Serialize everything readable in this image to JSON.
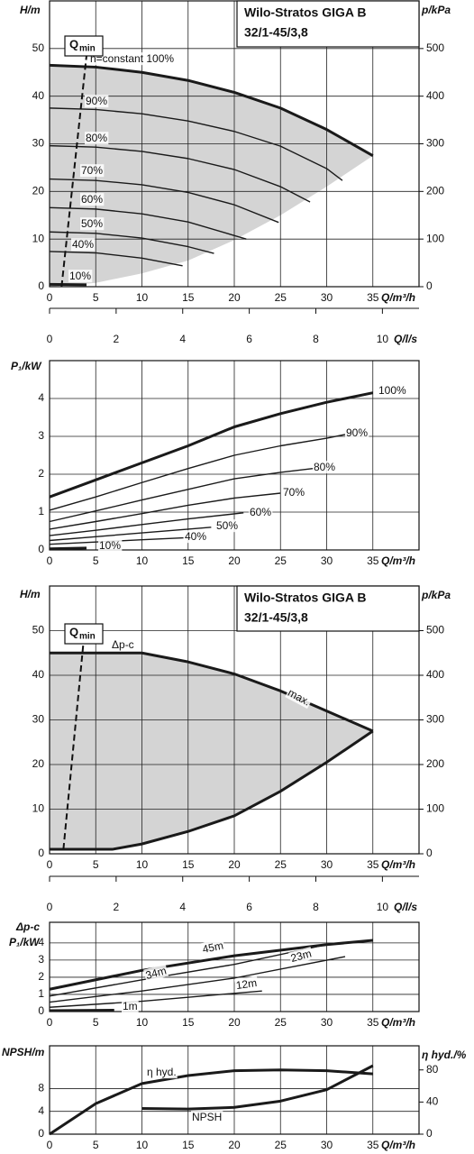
{
  "chart_data": [
    {
      "type": "line",
      "title": [
        "Wilo-Stratos GIGA B",
        "32/1-45/3,8"
      ],
      "ylabel": [
        "H/m"
      ],
      "y2label": "p/kPa",
      "xlabel": "Q/m³/h",
      "xlim": [
        0,
        40
      ],
      "xticks": [
        0,
        5,
        10,
        15,
        20,
        25,
        30,
        35
      ],
      "ylim": [
        0,
        60
      ],
      "yticks": [
        0,
        10,
        20,
        30,
        40,
        50
      ],
      "y2lim": [
        0,
        600
      ],
      "y2ticks": [
        0,
        100,
        200,
        300,
        400,
        500
      ],
      "grid": true,
      "qmin": {
        "label": "Q",
        "subscript": "min",
        "x": [
          1.3,
          4
        ],
        "values": [
          0,
          48.5
        ]
      },
      "region": {
        "color": "#d4d4d4",
        "line": false,
        "x": [
          0,
          5,
          10,
          15,
          20,
          25,
          30,
          35
        ],
        "values": [
          0,
          0.8,
          2.8,
          5.5,
          9.8,
          15,
          21,
          27.5
        ]
      },
      "series": [
        {
          "name": "n=constant 100%",
          "color": "#1a1a1a",
          "thick": true,
          "x": [
            0,
            5,
            10,
            15,
            20,
            25,
            30,
            35
          ],
          "values": [
            46.5,
            46.1,
            45,
            43.3,
            40.8,
            37.5,
            33,
            27.5
          ]
        },
        {
          "name": "90%",
          "color": "#1a1a1a",
          "x": [
            0,
            5,
            10,
            15,
            20,
            25,
            30,
            31.7
          ],
          "values": [
            37.5,
            37.2,
            36.3,
            34.8,
            32.6,
            29.5,
            24.8,
            22.3
          ]
        },
        {
          "name": "80%",
          "color": "#1a1a1a",
          "x": [
            0,
            5,
            10,
            15,
            20,
            25,
            28.2
          ],
          "values": [
            29.6,
            29.3,
            28.4,
            26.9,
            24.6,
            21,
            17.8
          ]
        },
        {
          "name": "70%",
          "color": "#1a1a1a",
          "x": [
            0,
            5,
            10,
            15,
            20,
            24.8
          ],
          "values": [
            22.6,
            22.3,
            21.4,
            19.8,
            17.2,
            13.5
          ]
        },
        {
          "name": "60%",
          "color": "#1a1a1a",
          "x": [
            0,
            5,
            10,
            15,
            21.3
          ],
          "values": [
            16.6,
            16.3,
            15.3,
            13.6,
            10
          ]
        },
        {
          "name": "50%",
          "color": "#1a1a1a",
          "x": [
            0,
            5,
            10,
            15,
            17.8
          ],
          "values": [
            11.5,
            11.2,
            10.2,
            8.4,
            7
          ]
        },
        {
          "name": "40%",
          "color": "#1a1a1a",
          "x": [
            0,
            5,
            10,
            14.4
          ],
          "values": [
            7.4,
            7.1,
            6,
            4.4
          ]
        },
        {
          "name": "10%",
          "color": "#1a1a1a",
          "thick": true,
          "x": [
            0,
            4
          ],
          "values": [
            0.5,
            0.4
          ]
        }
      ]
    },
    {
      "type": "axis",
      "xlabel": "Q/l/s",
      "xlim": [
        0,
        11.1
      ],
      "xticks": [
        0,
        2,
        4,
        6,
        8,
        10
      ]
    },
    {
      "type": "line",
      "ylabel": [
        "P₁/kW"
      ],
      "xlabel": "Q/m³/h",
      "xlim": [
        0,
        40
      ],
      "xticks": [
        0,
        5,
        10,
        15,
        20,
        25,
        30,
        35
      ],
      "ylim": [
        0,
        5
      ],
      "yticks": [
        0,
        1,
        2,
        3,
        4
      ],
      "grid": true,
      "series": [
        {
          "name": "100%",
          "color": "#1a1a1a",
          "thick": true,
          "x": [
            0,
            5,
            10,
            15,
            20,
            25,
            30,
            35
          ],
          "values": [
            1.4,
            1.85,
            2.3,
            2.75,
            3.25,
            3.6,
            3.9,
            4.15
          ]
        },
        {
          "name": "90%",
          "color": "#1a1a1a",
          "x": [
            0,
            5,
            10,
            15,
            20,
            25,
            30,
            32
          ],
          "values": [
            1.05,
            1.4,
            1.78,
            2.15,
            2.5,
            2.75,
            2.95,
            3.05
          ]
        },
        {
          "name": "80%",
          "color": "#1a1a1a",
          "x": [
            0,
            5,
            10,
            15,
            20,
            25,
            28.5
          ],
          "values": [
            0.75,
            1.03,
            1.32,
            1.6,
            1.88,
            2.05,
            2.15
          ]
        },
        {
          "name": "70%",
          "color": "#1a1a1a",
          "x": [
            0,
            5,
            10,
            15,
            20,
            25
          ],
          "values": [
            0.55,
            0.75,
            0.96,
            1.18,
            1.37,
            1.5
          ]
        },
        {
          "name": "60%",
          "color": "#1a1a1a",
          "x": [
            0,
            5,
            10,
            15,
            21
          ],
          "values": [
            0.38,
            0.52,
            0.67,
            0.82,
            0.98
          ]
        },
        {
          "name": "50%",
          "color": "#1a1a1a",
          "x": [
            0,
            5,
            10,
            15,
            17.5
          ],
          "values": [
            0.25,
            0.35,
            0.45,
            0.55,
            0.6
          ]
        },
        {
          "name": "40%",
          "color": "#1a1a1a",
          "x": [
            0,
            5,
            10,
            14.5
          ],
          "values": [
            0.15,
            0.21,
            0.27,
            0.32
          ]
        },
        {
          "name": "10%",
          "color": "#1a1a1a",
          "thick": true,
          "x": [
            0,
            4
          ],
          "values": [
            0.03,
            0.05
          ]
        }
      ]
    },
    {
      "type": "line",
      "title": [
        "Wilo-Stratos GIGA B",
        "32/1-45/3,8"
      ],
      "ylabel": [
        "H/m"
      ],
      "y2label": "p/kPa",
      "xlabel": "Q/m³/h",
      "xlim": [
        0,
        40
      ],
      "xticks": [
        0,
        5,
        10,
        15,
        20,
        25,
        30,
        35
      ],
      "ylim": [
        0,
        60
      ],
      "yticks": [
        0,
        10,
        20,
        30,
        40,
        50
      ],
      "y2lim": [
        0,
        600
      ],
      "y2ticks": [
        0,
        100,
        200,
        300,
        400,
        500
      ],
      "grid": true,
      "qmin": {
        "label": "Q",
        "subscript": "min",
        "x": [
          1.5,
          3.7
        ],
        "values": [
          1,
          48
        ]
      },
      "region": {
        "color": "#d4d4d4",
        "line": true,
        "x": [
          0,
          6.8,
          10,
          15,
          20,
          25,
          30,
          35
        ],
        "values": [
          1,
          1,
          2.2,
          5,
          8.5,
          14,
          20.5,
          27.5
        ]
      },
      "series": [
        {
          "name": "Δp-c",
          "color": "#1a1a1a",
          "thick": true,
          "x": [
            0,
            10
          ],
          "values": [
            45,
            45
          ]
        },
        {
          "name": "max.",
          "color": "#1a1a1a",
          "thick": true,
          "x": [
            10,
            15,
            20,
            25,
            30,
            35
          ],
          "values": [
            45,
            43,
            40.3,
            36.5,
            32,
            27.5
          ]
        }
      ]
    },
    {
      "type": "axis",
      "xlabel": "Q/l/s",
      "xlim": [
        0,
        11.1
      ],
      "xticks": [
        0,
        2,
        4,
        6,
        8,
        10
      ]
    },
    {
      "type": "line",
      "ylabel": [
        "Δp-c",
        "P₁/kW"
      ],
      "xlabel": "Q/m³/h",
      "xlim": [
        0,
        40
      ],
      "xticks": [
        0,
        5,
        10,
        15,
        20,
        25,
        30,
        35
      ],
      "ylim": [
        0,
        5.2
      ],
      "yticks": [
        0,
        1,
        2,
        3,
        4
      ],
      "grid": true,
      "series": [
        {
          "name": "45m",
          "color": "#1a1a1a",
          "thick": true,
          "x": [
            0,
            10,
            20,
            30,
            35
          ],
          "values": [
            1.3,
            2.4,
            3.25,
            3.9,
            4.15
          ]
        },
        {
          "name": "34m",
          "color": "#1a1a1a",
          "x": [
            0,
            10,
            20,
            30
          ],
          "values": [
            0.9,
            1.85,
            2.75,
            3.9
          ]
        },
        {
          "name": "23m",
          "color": "#1a1a1a",
          "x": [
            0,
            10,
            20,
            32
          ],
          "values": [
            0.55,
            1.2,
            1.95,
            3.2
          ]
        },
        {
          "name": "12m",
          "color": "#1a1a1a",
          "x": [
            0,
            10,
            23
          ],
          "values": [
            0.25,
            0.6,
            1.2
          ]
        },
        {
          "name": "1m",
          "color": "#1a1a1a",
          "thick": true,
          "x": [
            0,
            7
          ],
          "values": [
            0.05,
            0.08
          ]
        }
      ]
    },
    {
      "type": "line",
      "ylabel": [
        "NPSH/m"
      ],
      "y2label": "η hyd./%",
      "xlabel": "Q/m³/h",
      "xlim": [
        0,
        40
      ],
      "xticks": [
        0,
        5,
        10,
        15,
        20,
        25,
        30,
        35
      ],
      "ylim": [
        0,
        15.5
      ],
      "yticks": [
        0,
        4,
        8
      ],
      "y2lim": [
        0,
        110
      ],
      "y2ticks": [
        0,
        40,
        80
      ],
      "grid": true,
      "series": [
        {
          "name": "η hyd.",
          "color": "#1a1a1a",
          "thick": true,
          "axis": "y2",
          "x": [
            0,
            5,
            10,
            15,
            20,
            25,
            30,
            35
          ],
          "values": [
            0,
            38,
            63,
            73,
            79,
            80,
            79,
            75
          ]
        },
        {
          "name": "NPSH",
          "color": "#1a1a1a",
          "thick": true,
          "x": [
            10,
            15,
            20,
            25,
            30,
            35
          ],
          "values": [
            4.5,
            4.4,
            4.7,
            5.8,
            7.8,
            12
          ]
        }
      ]
    }
  ]
}
